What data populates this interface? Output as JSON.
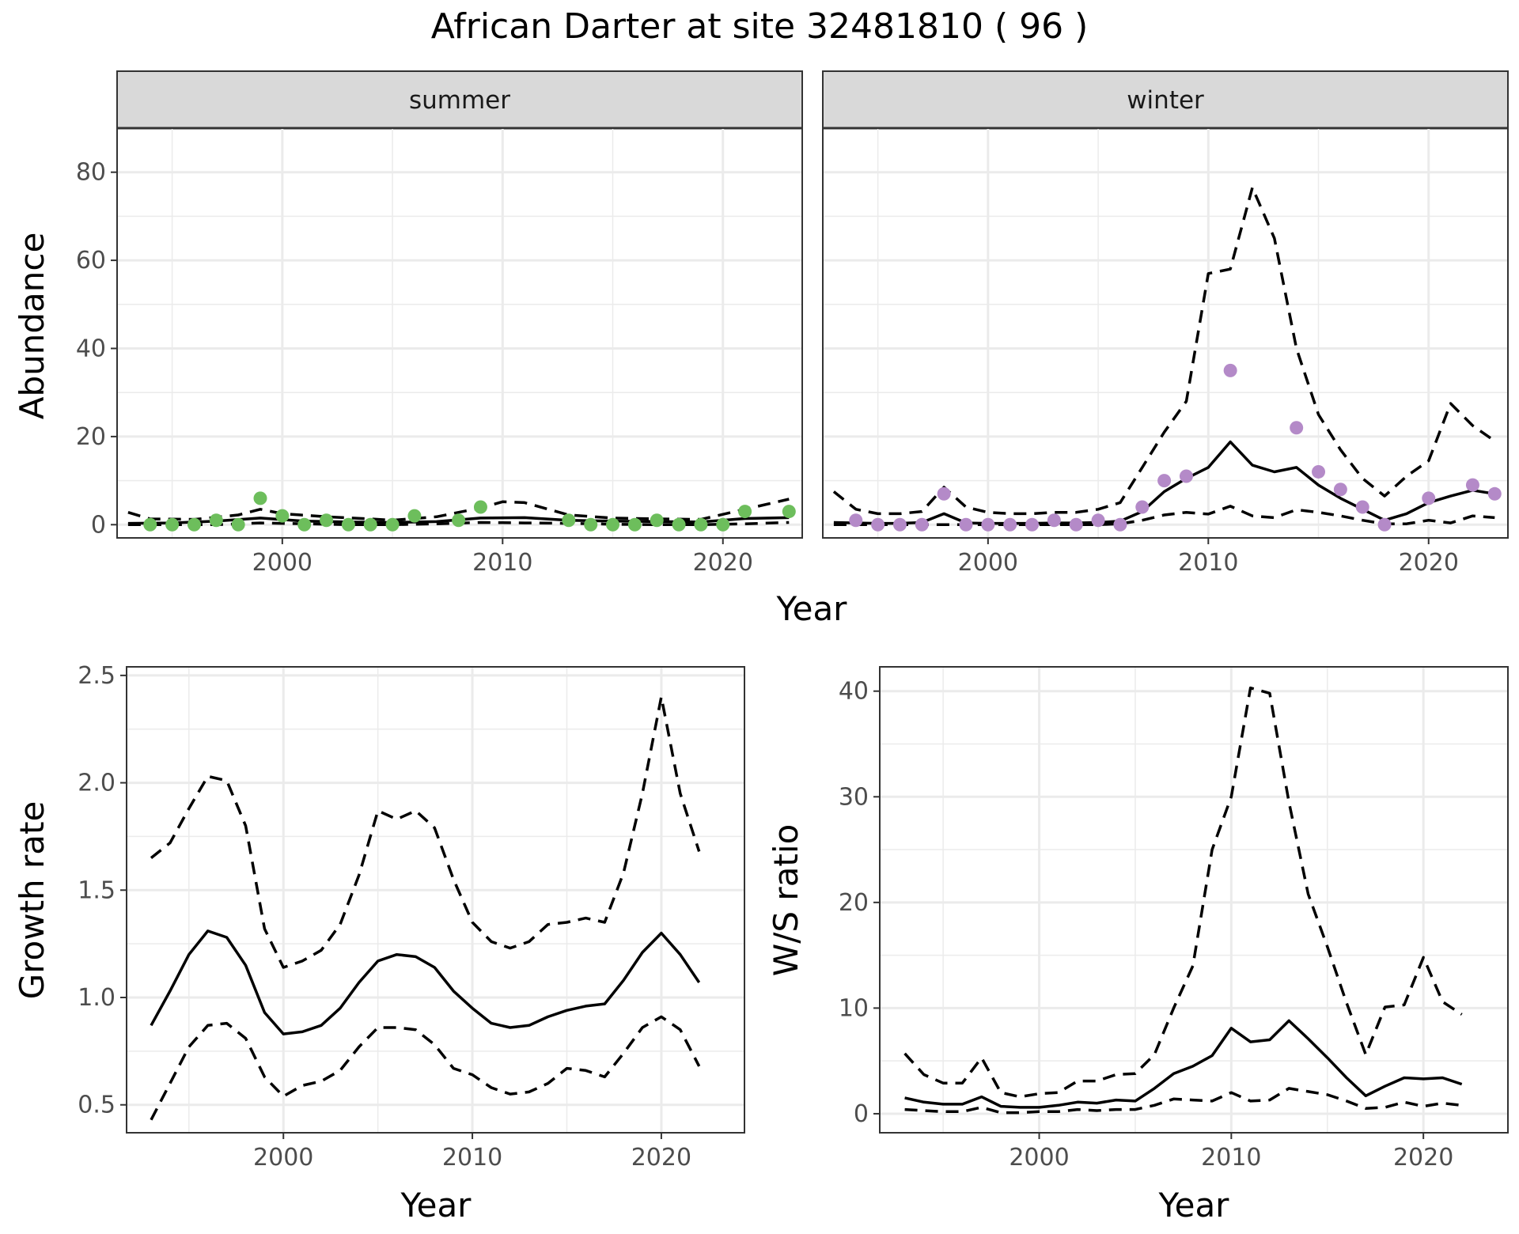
{
  "title": "African Darter at site 32481810 ( 96 )",
  "colors": {
    "summer_points": "#6dbe5c",
    "winter_points": "#b48ac8",
    "lines": "#000000",
    "strip_fill": "#d9d9d9"
  },
  "chart_data": [
    {
      "type": "line",
      "facet": "summer",
      "ylabel": "Abundance",
      "xlabel": "Year",
      "xlim": [
        1992.5,
        2023.6
      ],
      "ylim": [
        -3,
        90
      ],
      "xticks": [
        2000,
        2010,
        2020
      ],
      "yticks": [
        0,
        20,
        40,
        60,
        80
      ],
      "grid": true,
      "points": {
        "x": [
          1994,
          1995,
          1996,
          1997,
          1998,
          1999,
          2000,
          2001,
          2002,
          2003,
          2004,
          2005,
          2006,
          2008,
          2009,
          2013,
          2014,
          2015,
          2016,
          2017,
          2018,
          2019,
          2020,
          2021,
          2023
        ],
        "y": [
          0,
          0,
          0,
          1,
          0,
          6,
          2,
          0,
          1,
          0,
          0,
          0,
          2,
          1,
          4,
          1,
          0,
          0,
          0,
          1,
          0,
          0,
          0,
          3,
          3
        ]
      },
      "series": [
        {
          "style": "solid",
          "x": [
            1993,
            1995,
            1997,
            1999,
            2001,
            2003,
            2005,
            2007,
            2009,
            2011,
            2013,
            2015,
            2017,
            2019,
            2021,
            2023
          ],
          "y": [
            0.3,
            0.4,
            0.8,
            1.5,
            0.8,
            0.6,
            0.5,
            0.7,
            1.5,
            1.6,
            1.0,
            0.8,
            0.7,
            0.6,
            1.4,
            1.6
          ]
        },
        {
          "style": "dashed",
          "x": [
            1993,
            1994,
            1996,
            1998,
            1999,
            2000,
            2002,
            2004,
            2005,
            2007,
            2009,
            2010,
            2011,
            2013,
            2015,
            2017,
            2019,
            2021,
            2023
          ],
          "y": [
            2.8,
            1.3,
            1.2,
            2.2,
            3.5,
            2.5,
            1.8,
            1.3,
            1.0,
            1.8,
            3.8,
            5.2,
            5.0,
            2.2,
            1.5,
            1.3,
            1.2,
            3.5,
            5.8
          ]
        },
        {
          "style": "dashed",
          "x": [
            1993,
            1995,
            1997,
            1999,
            2001,
            2003,
            2005,
            2007,
            2009,
            2011,
            2013,
            2015,
            2017,
            2019,
            2021,
            2023
          ],
          "y": [
            0,
            0,
            0,
            0.4,
            0.2,
            0,
            0,
            0.2,
            0.5,
            0.4,
            0.3,
            0.1,
            0,
            0,
            0.2,
            0.5
          ]
        }
      ]
    },
    {
      "type": "line",
      "facet": "winter",
      "ylabel": "Abundance",
      "xlabel": "Year",
      "xlim": [
        1992.5,
        2023.6
      ],
      "ylim": [
        -3,
        90
      ],
      "xticks": [
        2000,
        2010,
        2020
      ],
      "yticks": [
        0,
        20,
        40,
        60,
        80
      ],
      "grid": true,
      "points": {
        "x": [
          1994,
          1995,
          1996,
          1997,
          1998,
          1999,
          2000,
          2001,
          2002,
          2003,
          2004,
          2005,
          2006,
          2007,
          2008,
          2009,
          2011,
          2014,
          2015,
          2016,
          2017,
          2018,
          2020,
          2022,
          2023
        ],
        "y": [
          1,
          0,
          0,
          0,
          7,
          0,
          0,
          0,
          0,
          1,
          0,
          1,
          0,
          4,
          10,
          11,
          35,
          22,
          12,
          8,
          4,
          0,
          6,
          9,
          7
        ]
      },
      "series": [
        {
          "style": "solid",
          "x": [
            1993,
            1994,
            1995,
            1996,
            1997,
            1998,
            1999,
            2000,
            2001,
            2002,
            2003,
            2004,
            2005,
            2006,
            2007,
            2008,
            2009,
            2010,
            2011,
            2012,
            2013,
            2014,
            2015,
            2016,
            2017,
            2018,
            2019,
            2020,
            2021,
            2022,
            2023
          ],
          "y": [
            0.5,
            0.4,
            0.3,
            0.3,
            0.5,
            2.5,
            0.4,
            0.3,
            0.3,
            0.3,
            0.4,
            0.4,
            0.5,
            0.8,
            3.0,
            7.5,
            10.5,
            13.0,
            18.8,
            13.5,
            12.0,
            13.0,
            9.0,
            6.0,
            3.5,
            1.0,
            2.5,
            5.0,
            6.5,
            7.8,
            7.0
          ]
        },
        {
          "style": "dashed",
          "x": [
            1993,
            1994,
            1995,
            1996,
            1997,
            1998,
            1999,
            2000,
            2001,
            2002,
            2003,
            2004,
            2005,
            2006,
            2007,
            2008,
            2009,
            2010,
            2011,
            2012,
            2013,
            2014,
            2015,
            2016,
            2017,
            2018,
            2019,
            2020,
            2021,
            2022,
            2023
          ],
          "y": [
            7.5,
            3.5,
            2.5,
            2.5,
            3.0,
            8.5,
            4.0,
            2.8,
            2.5,
            2.5,
            2.8,
            2.8,
            3.5,
            5.0,
            13.0,
            21.0,
            28.0,
            57.0,
            58.0,
            76.5,
            65.0,
            40.0,
            25.0,
            17.0,
            10.5,
            6.5,
            11.0,
            14.5,
            27.5,
            22.5,
            19.0
          ]
        },
        {
          "style": "dashed",
          "x": [
            1993,
            1995,
            1997,
            1999,
            2001,
            2003,
            2005,
            2006,
            2007,
            2008,
            2009,
            2010,
            2011,
            2012,
            2013,
            2014,
            2015,
            2016,
            2017,
            2018,
            2019,
            2020,
            2021,
            2022,
            2023
          ],
          "y": [
            0,
            0,
            0,
            0,
            0,
            0,
            0,
            0.2,
            1.0,
            2.2,
            2.8,
            2.4,
            4.2,
            2.0,
            1.6,
            3.4,
            2.8,
            2.0,
            1.0,
            0.2,
            0.2,
            1.0,
            0.4,
            2.0,
            1.6
          ]
        }
      ]
    },
    {
      "type": "line",
      "ylabel": "Growth rate",
      "xlabel": "Year",
      "xlim": [
        1991.7,
        2024.4
      ],
      "ylim": [
        0.37,
        2.54
      ],
      "xticks": [
        2000,
        2010,
        2020
      ],
      "yticks": [
        0.5,
        1.0,
        1.5,
        2.0,
        2.5
      ],
      "ytick_labels": [
        "0.5",
        "1.0",
        "1.5",
        "2.0",
        "2.5"
      ],
      "grid": true,
      "series": [
        {
          "style": "solid",
          "x": [
            1993,
            1994,
            1995,
            1996,
            1997,
            1998,
            1999,
            2000,
            2001,
            2002,
            2003,
            2004,
            2005,
            2006,
            2007,
            2008,
            2009,
            2010,
            2011,
            2012,
            2013,
            2014,
            2015,
            2016,
            2017,
            2018,
            2019,
            2020,
            2021,
            2022
          ],
          "y": [
            0.87,
            1.03,
            1.2,
            1.31,
            1.28,
            1.15,
            0.93,
            0.83,
            0.84,
            0.87,
            0.95,
            1.07,
            1.17,
            1.2,
            1.19,
            1.14,
            1.03,
            0.95,
            0.88,
            0.86,
            0.87,
            0.91,
            0.94,
            0.96,
            0.97,
            1.08,
            1.21,
            1.3,
            1.2,
            1.07
          ]
        },
        {
          "style": "dashed",
          "x": [
            1993,
            1994,
            1995,
            1996,
            1997,
            1998,
            1999,
            2000,
            2001,
            2002,
            2003,
            2004,
            2005,
            2006,
            2007,
            2008,
            2009,
            2010,
            2011,
            2012,
            2013,
            2014,
            2015,
            2016,
            2017,
            2018,
            2019,
            2020,
            2021,
            2022
          ],
          "y": [
            1.65,
            1.72,
            1.88,
            2.03,
            2.01,
            1.8,
            1.32,
            1.14,
            1.17,
            1.22,
            1.34,
            1.57,
            1.87,
            1.83,
            1.87,
            1.79,
            1.55,
            1.35,
            1.26,
            1.23,
            1.26,
            1.34,
            1.35,
            1.37,
            1.35,
            1.58,
            1.95,
            2.4,
            1.95,
            1.68
          ]
        },
        {
          "style": "dashed",
          "x": [
            1993,
            1994,
            1995,
            1996,
            1997,
            1998,
            1999,
            2000,
            2001,
            2002,
            2003,
            2004,
            2005,
            2006,
            2007,
            2008,
            2009,
            2010,
            2011,
            2012,
            2013,
            2014,
            2015,
            2016,
            2017,
            2018,
            2019,
            2020,
            2021,
            2022
          ],
          "y": [
            0.43,
            0.6,
            0.77,
            0.87,
            0.88,
            0.81,
            0.63,
            0.54,
            0.59,
            0.61,
            0.66,
            0.77,
            0.86,
            0.86,
            0.85,
            0.78,
            0.67,
            0.64,
            0.58,
            0.55,
            0.56,
            0.6,
            0.67,
            0.66,
            0.63,
            0.74,
            0.86,
            0.91,
            0.85,
            0.68
          ]
        }
      ]
    },
    {
      "type": "line",
      "ylabel": "W/S ratio",
      "xlabel": "Year",
      "xlim": [
        1991.7,
        2024.4
      ],
      "ylim": [
        -1.8,
        42.3
      ],
      "xticks": [
        2000,
        2010,
        2020
      ],
      "yticks": [
        0,
        10,
        20,
        30,
        40
      ],
      "grid": true,
      "series": [
        {
          "style": "solid",
          "x": [
            1993,
            1994,
            1995,
            1996,
            1997,
            1998,
            1999,
            2000,
            2001,
            2002,
            2003,
            2004,
            2005,
            2006,
            2007,
            2008,
            2009,
            2010,
            2011,
            2012,
            2013,
            2014,
            2015,
            2016,
            2017,
            2018,
            2019,
            2020,
            2021,
            2022
          ],
          "y": [
            1.5,
            1.1,
            0.9,
            0.9,
            1.6,
            0.7,
            0.6,
            0.6,
            0.8,
            1.1,
            1.0,
            1.3,
            1.2,
            2.4,
            3.8,
            4.5,
            5.5,
            8.1,
            6.8,
            7.0,
            8.8,
            7.1,
            5.3,
            3.4,
            1.7,
            2.6,
            3.4,
            3.3,
            3.4,
            2.8
          ]
        },
        {
          "style": "dashed",
          "x": [
            1993,
            1994,
            1995,
            1996,
            1997,
            1998,
            1999,
            2000,
            2001,
            2002,
            2003,
            2004,
            2005,
            2006,
            2007,
            2008,
            2009,
            2010,
            2011,
            2012,
            2013,
            2014,
            2015,
            2016,
            2017,
            2018,
            2019,
            2020,
            2021,
            2022
          ],
          "y": [
            5.7,
            3.7,
            2.9,
            2.9,
            5.3,
            2.0,
            1.6,
            1.9,
            2.0,
            3.1,
            3.1,
            3.7,
            3.8,
            5.6,
            10.0,
            14.0,
            25.0,
            30.0,
            40.3,
            39.8,
            29.5,
            20.8,
            15.8,
            10.5,
            5.6,
            10.1,
            10.3,
            14.8,
            10.6,
            9.4
          ]
        },
        {
          "style": "dashed",
          "x": [
            1993,
            1994,
            1995,
            1996,
            1997,
            1998,
            1999,
            2000,
            2001,
            2002,
            2003,
            2004,
            2005,
            2006,
            2007,
            2008,
            2009,
            2010,
            2011,
            2012,
            2013,
            2014,
            2015,
            2016,
            2017,
            2018,
            2019,
            2020,
            2021,
            2022
          ],
          "y": [
            0.4,
            0.3,
            0.2,
            0.2,
            0.6,
            0.1,
            0.1,
            0.2,
            0.2,
            0.4,
            0.3,
            0.4,
            0.4,
            0.8,
            1.4,
            1.3,
            1.2,
            2.0,
            1.2,
            1.3,
            2.4,
            2.1,
            1.8,
            1.2,
            0.5,
            0.6,
            1.1,
            0.7,
            1.0,
            0.8
          ]
        }
      ]
    }
  ],
  "facets": {
    "summer": "summer",
    "winter": "winter"
  },
  "labels": {
    "year": "Year",
    "abundance": "Abundance",
    "growth": "Growth rate",
    "ws": "W/S ratio"
  }
}
